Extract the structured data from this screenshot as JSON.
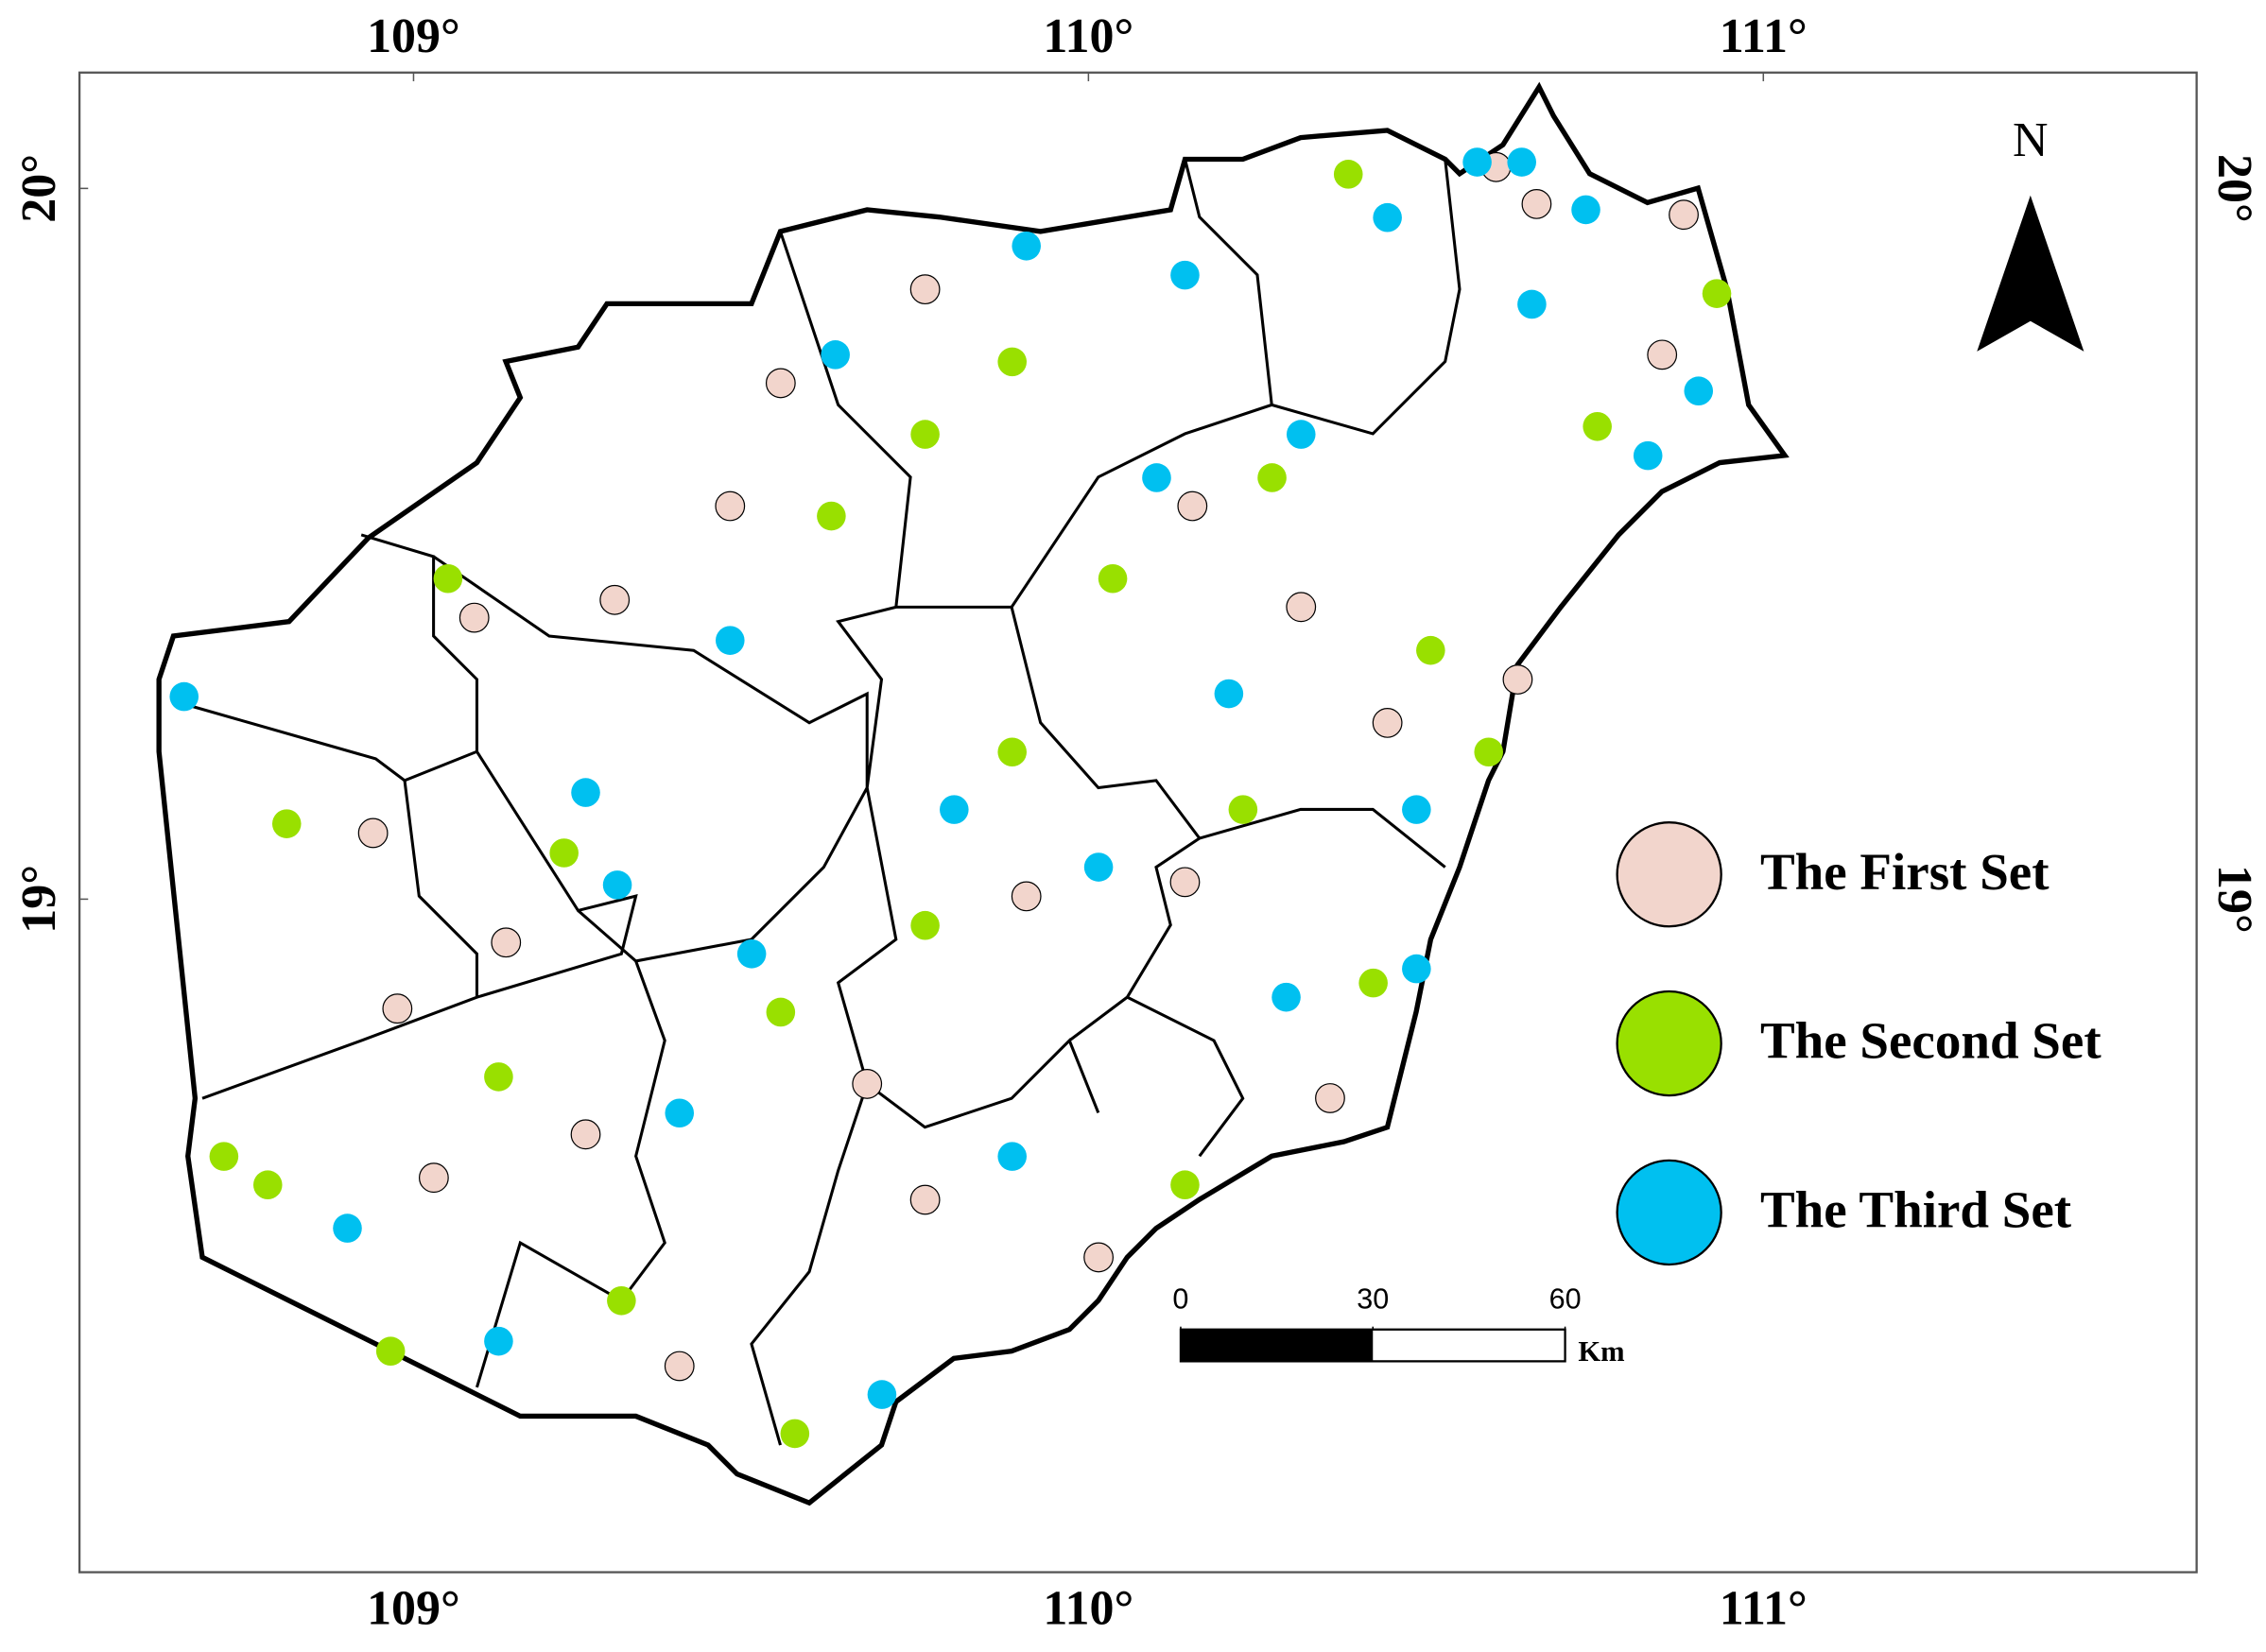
{
  "chart_data": {
    "type": "map",
    "xlim": [
      108.505,
      111.642
    ],
    "ylim": [
      18.053,
      20.163
    ],
    "xticks": [
      {
        "value": 109,
        "label": "109°"
      },
      {
        "value": 110,
        "label": "110°"
      },
      {
        "value": 111,
        "label": "111°"
      }
    ],
    "yticks": [
      {
        "value": 19,
        "label": "19°"
      },
      {
        "value": 20,
        "label": "20°"
      }
    ],
    "north": "N",
    "scale_bar": {
      "ticks": [
        0,
        30,
        60
      ],
      "unit": "Km"
    },
    "series": [
      {
        "name": "The First Set",
        "color": "#f2d5cc",
        "x": [
          110.664,
          110.882,
          110.85,
          109.469,
          109.298,
          109.09,
          108.94,
          108.976,
          109.137,
          109.758,
          109.544,
          110.604,
          110.358,
          109.394,
          110.015,
          109.908,
          110.154,
          110.315,
          110.443,
          110.636,
          110.143,
          109.758,
          109.672,
          109.03,
          109.255
        ],
        "y": [
          19.978,
          19.963,
          19.766,
          19.553,
          19.421,
          19.396,
          19.093,
          18.846,
          18.939,
          19.858,
          19.726,
          20.03,
          18.72,
          18.343,
          18.496,
          19.004,
          19.553,
          19.411,
          19.248,
          19.309,
          19.024,
          18.577,
          18.74,
          18.608,
          18.669
        ]
      },
      {
        "name": "The Second Set",
        "color": "#99e000",
        "x": [
          110.385,
          110.931,
          108.812,
          109.619,
          109.051,
          108.719,
          108.784,
          108.966,
          109.565,
          109.126,
          109.223,
          109.758,
          109.887,
          110.036,
          110.272,
          110.507,
          110.593,
          109.887,
          110.229,
          110.422,
          109.758,
          109.544,
          109.308,
          110.143,
          110.754
        ],
        "y": [
          20.02,
          19.852,
          19.106,
          19.539,
          19.451,
          18.638,
          18.598,
          18.364,
          18.248,
          18.75,
          19.065,
          19.654,
          19.756,
          19.451,
          19.593,
          19.35,
          19.207,
          19.207,
          19.126,
          18.882,
          18.963,
          18.841,
          18.435,
          18.598,
          19.665
        ]
      },
      {
        "name": "The Third Set",
        "color": "#00c0f0",
        "x": [
          110.576,
          110.642,
          110.737,
          109.625,
          108.66,
          109.469,
          109.255,
          109.302,
          109.694,
          109.126,
          108.902,
          109.908,
          110.143,
          110.443,
          110.657,
          110.829,
          110.101,
          110.315,
          110.208,
          110.486,
          110.015,
          110.293,
          109.801,
          109.501,
          109.394,
          109.887,
          110.486,
          110.904
        ],
        "y": [
          20.037,
          20.037,
          19.97,
          19.766,
          19.285,
          19.364,
          19.15,
          19.02,
          18.303,
          18.378,
          18.537,
          19.919,
          19.878,
          19.959,
          19.837,
          19.624,
          19.593,
          19.654,
          19.289,
          19.126,
          19.045,
          18.862,
          19.126,
          18.923,
          18.699,
          18.638,
          18.902,
          19.715
        ]
      }
    ]
  }
}
